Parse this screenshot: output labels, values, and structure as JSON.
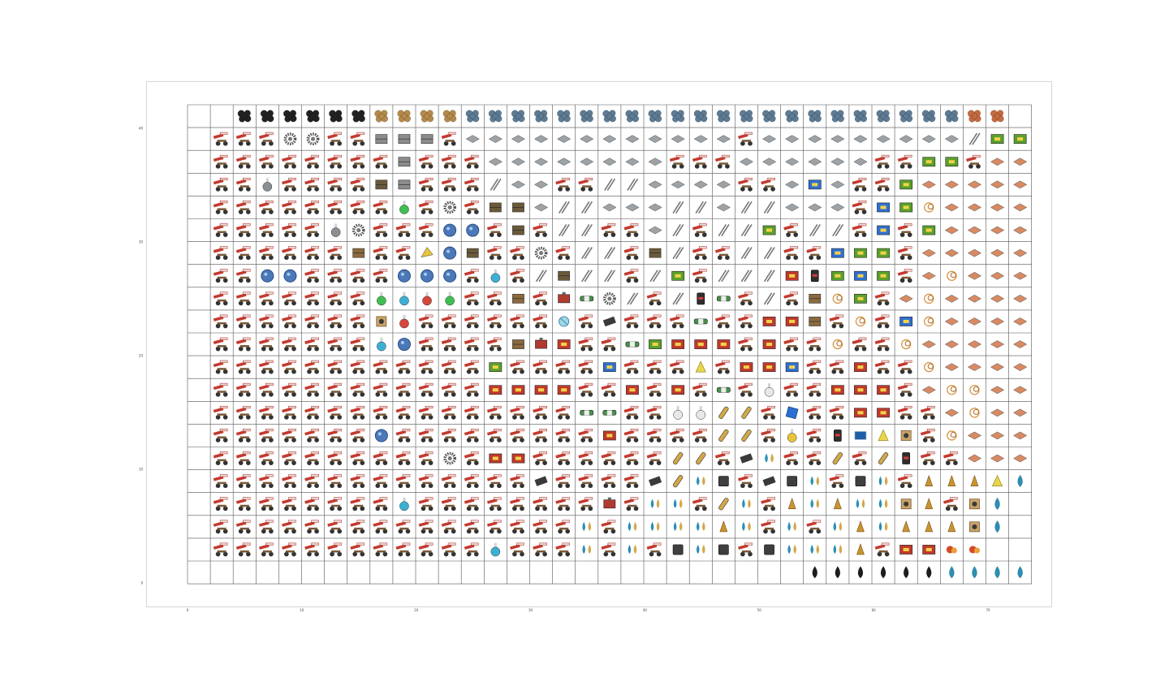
{
  "chart_data": {
    "type": "heatmap",
    "title": "",
    "xlabel": "",
    "ylabel": "",
    "x_ticks": [
      "0",
      "10",
      "20",
      "30",
      "40",
      "50",
      "60",
      "70"
    ],
    "y_ticks": [
      "0",
      "10",
      "20",
      "30",
      "40"
    ],
    "xlim": [
      0,
      72
    ],
    "ylim": [
      0,
      42
    ],
    "grid": true,
    "colors": {
      "grid": "#555555",
      "frame": "#d6d6d6",
      "inserter": "#c43a2f",
      "plate_iron": "#9da2a6",
      "plate_copper": "#d88a63",
      "ore_coal": "#222222",
      "ore_stone": "#b58a4a",
      "ore_iron": "#5d7b94",
      "ore_copper": "#c46b3f",
      "circuit_green": "#5aa02c",
      "circuit_red": "#c0392b",
      "circuit_blue": "#2f6fd1",
      "science_blue": "#3cb0d4",
      "science_green": "#3fbf52",
      "science_red": "#d6473b",
      "science_purple": "#9b4fd1",
      "science_yellow": "#e8c43a",
      "science_white": "#e8e8e8",
      "fluid_oil": "#1d1d1d",
      "fluid_water": "#2a8fb5"
    },
    "rows": [
      "..CCCCCCSSSSIIIIIIIIIIIIIIIIIIIIIIOO..",
      ".TTTGGTTBBBTPPPPPPPPPPPPTPPPPPPPPPRNN.",
      ".TTTTTTTTBTTTPPPPPPPPTTTPPPPPPTTNNTQQQ",
      ".TTfTTTTKBTTTRPPTTRRPPPPTTPUPTTNQQQQQ",
      ".TTTTTTTTgTLTKKPRRPPPRRPRRPPPTUNWQQQQ",
      ".TTTTTfHTTTEETKTRRTTPRTRRNTRRTUTNQQQQ",
      ".TTTTTTZTTXEKTTHTRRTKRTTRRTTUNNTQQQQQ",
      ".TTEETTTTEEETbTRKRRTRNTRRRYVNUNTQWQQQ",
      ".TTTTTTTgbrgTTZTFDHRTRVDTRTZxNTQWQQQQ",
      ".TTTTTTTJrTTTTTTyTMTTTDTTYYZTxTUWQQQQ",
      ".TTTTTTTbETTTTZFYTTDNYYYTYTTxTTWQQQQQ",
      ".TTTTTTTTTTTTNTTTTUTTTnTYYUTTYTTxQQQQ",
      ".TTTTTTTTTTTTYYYYTTYTYTDTwTTYYYTQWWQQ",
      ".TTTTTTTTTTTTTTTTDDTTwwaaTuTTYYTTQWQQ",
      ".TTTTTTTETTTTTTTTTYTTTTaaTdTVhnJTWQQQ",
      ".TTTTTTTTTTHTYYTTTTTTaaTMsTTaTaVTTQQQ",
      ".TTTTTTTTTTTTTTMTTTTMaskTMksTksTvvvnl",
      ".TTTTTTTTbTTTTTTTTFTssTasTvsvssJvTJl",
      ".TTTTTTTTTTTTTTTTsTssssvsTsTsvsvvvJl",
      ".TTTTTTTTTTTTbTTTsTsTkskTksssvTYYAA.",
      "...........................oooooolllllll."
    ],
    "legend_map": {
      "T": "inserter",
      "C": "ore_coal",
      "S": "ore_stone",
      "I": "ore_iron",
      "O": "ore_copper",
      "P": "plate_iron",
      "Q": "plate_copper",
      "N": "circuit_green",
      "Y": "circuit_red",
      "U": "circuit_blue",
      "G": "gear_wheel",
      "B": "iron_chest",
      "R": "rail",
      "f": "flask_empty",
      "K": "steel_chest",
      "g": "science_green",
      "L": "gear",
      "E": "science_blue_orb",
      "H": "gear",
      "Z": "wooden_box",
      "X": "assembler_yellow",
      "b": "science_blue",
      "r": "science_red",
      "J": "lab",
      "D": "pipe",
      "F": "engine",
      "M": "steel_plate",
      "V": "battery",
      "W": "copper_cable",
      "x": "copper_coil",
      "y": "radar",
      "n": "sulfur",
      "w": "science_white",
      "a": "rocket",
      "u": "processing_unit",
      "d": "science_yellow",
      "h": "solar",
      "k": "stone_brick",
      "s": "fluid_mix",
      "v": "solid_fuel",
      "o": "fluid_oil",
      "l": "fluid_water",
      "A": "mining_drill"
    }
  }
}
